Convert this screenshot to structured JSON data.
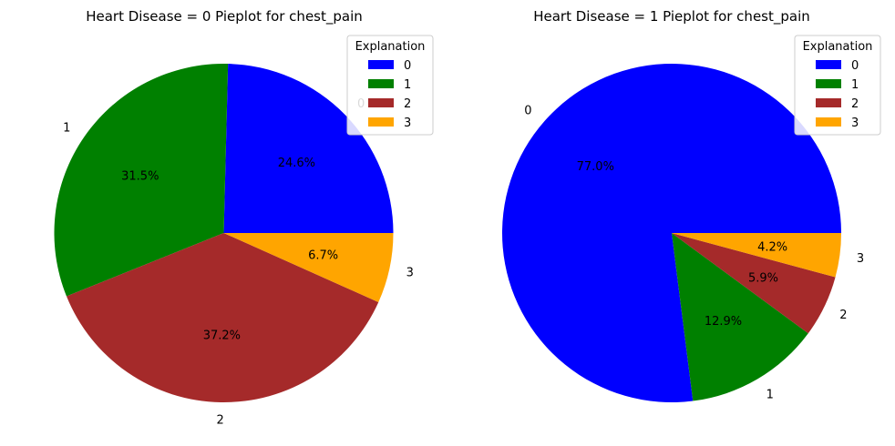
{
  "chart_data": [
    {
      "type": "pie",
      "title": "Heart Disease = 0 Pieplot for chest_pain",
      "categories": [
        "0",
        "1",
        "2",
        "3"
      ],
      "values": [
        24.6,
        31.5,
        37.2,
        6.7
      ],
      "value_labels": [
        "24.6%",
        "31.5%",
        "37.2%",
        "6.7%"
      ],
      "colors": [
        "#0000ff",
        "#008000",
        "#a52a2a",
        "#ffa500"
      ],
      "start_angle_deg": 0,
      "direction": "counterclockwise",
      "legend": {
        "title": "Explanation",
        "entries": [
          "0",
          "1",
          "2",
          "3"
        ],
        "placement": "top-right"
      }
    },
    {
      "type": "pie",
      "title": "Heart Disease = 1 Pieplot for chest_pain",
      "categories": [
        "0",
        "1",
        "2",
        "3"
      ],
      "values": [
        77.0,
        12.9,
        5.9,
        4.2
      ],
      "value_labels": [
        "77.0%",
        "12.9%",
        "5.9%",
        "4.2%"
      ],
      "colors": [
        "#0000ff",
        "#008000",
        "#a52a2a",
        "#ffa500"
      ],
      "start_angle_deg": 0,
      "direction": "counterclockwise",
      "legend": {
        "title": "Explanation",
        "entries": [
          "0",
          "1",
          "2",
          "3"
        ],
        "placement": "top-right"
      }
    }
  ]
}
